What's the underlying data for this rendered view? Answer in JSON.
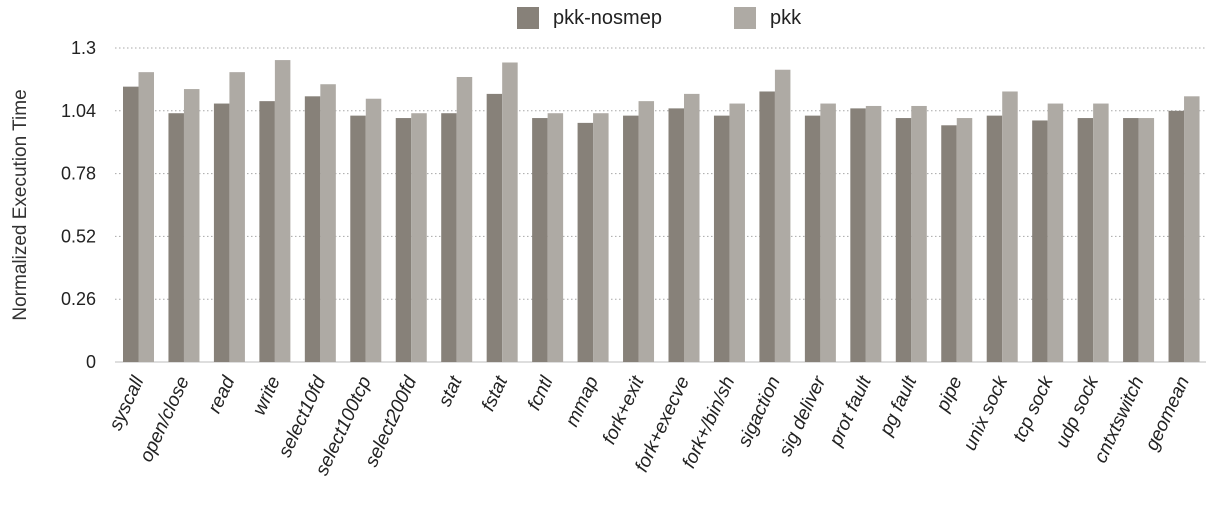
{
  "chart_data": {
    "type": "bar",
    "ylabel": "Normalized Execution Time",
    "xlabel": "",
    "title": "",
    "ylim": [
      0,
      1.3
    ],
    "yticks": [
      "0",
      "0.26",
      "0.52",
      "0.78",
      "1.04",
      "1.3"
    ],
    "grid": true,
    "legend_position": "top-center",
    "categories": [
      "syscall",
      "open/close",
      "read",
      "write",
      "select10fd",
      "select100tcp",
      "select200fd",
      "stat",
      "fstat",
      "fcntl",
      "mmap",
      "fork+exit",
      "fork+execve",
      "fork+/bin/sh",
      "sigaction",
      "sig deliver",
      "prot fault",
      "pg fault",
      "pipe",
      "unix sock",
      "tcp sock",
      "udp sock",
      "cntxtswitch",
      "geomean"
    ],
    "series": [
      {
        "name": "pkk-nosmep",
        "color": "#878179",
        "values": [
          1.14,
          1.03,
          1.07,
          1.08,
          1.1,
          1.02,
          1.01,
          1.03,
          1.11,
          1.01,
          0.99,
          1.02,
          1.05,
          1.02,
          1.12,
          1.02,
          1.05,
          1.01,
          0.98,
          1.02,
          1.0,
          1.01,
          1.01,
          1.04
        ]
      },
      {
        "name": "pkk",
        "color": "#aeaaa4",
        "values": [
          1.2,
          1.13,
          1.2,
          1.25,
          1.15,
          1.09,
          1.03,
          1.18,
          1.24,
          1.03,
          1.03,
          1.08,
          1.11,
          1.07,
          1.21,
          1.07,
          1.06,
          1.06,
          1.01,
          1.12,
          1.07,
          1.07,
          1.01,
          1.1
        ]
      }
    ]
  }
}
